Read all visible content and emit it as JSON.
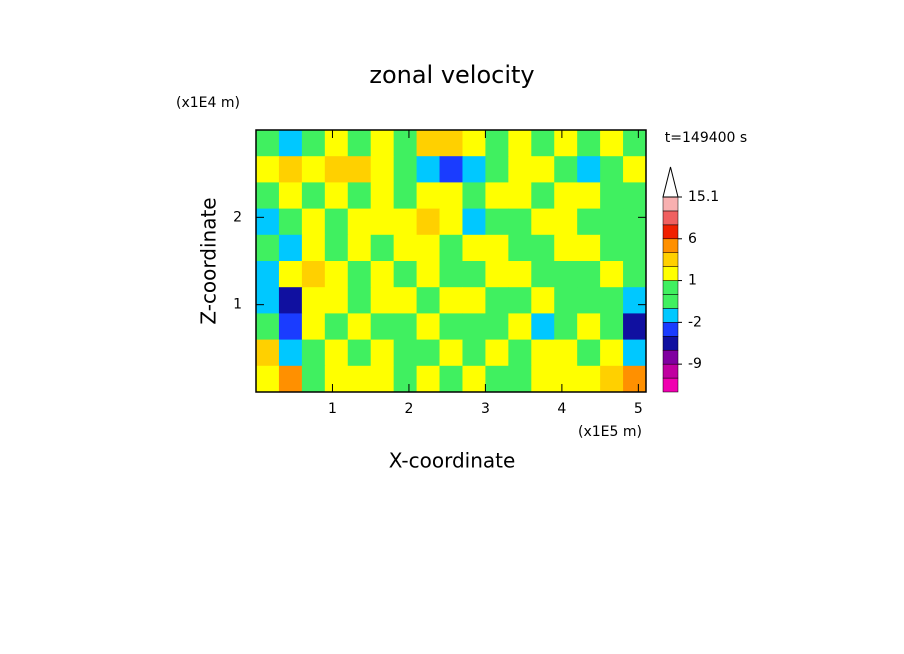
{
  "chart_data": {
    "type": "contour",
    "title": "zonal velocity",
    "xlabel": "X-coordinate",
    "ylabel": "Z-coordinate",
    "x_multiplier": "(x1E5 m)",
    "y_multiplier": "(x1E4 m)",
    "time_label": "t=149400 s",
    "xlim": [
      0,
      5.1
    ],
    "ylim": [
      0,
      3
    ],
    "xticks": [
      1,
      2,
      3,
      4,
      5
    ],
    "yticks": [
      1,
      2
    ],
    "x": [
      0.15,
      0.45,
      0.75,
      1.05,
      1.35,
      1.65,
      1.95,
      2.25,
      2.55,
      2.85,
      3.15,
      3.45,
      3.75,
      4.05,
      4.35,
      4.65,
      4.95
    ],
    "y": [
      2.85,
      2.55,
      2.25,
      1.95,
      1.65,
      1.35,
      1.05,
      0.75,
      0.45,
      0.15
    ],
    "z": [
      [
        0.5,
        -1.5,
        0.5,
        1.5,
        0.5,
        1.5,
        0.5,
        3,
        3,
        1.5,
        0.5,
        1.5,
        0.5,
        1.5,
        0.5,
        1.5,
        0.5
      ],
      [
        1.5,
        3,
        1.5,
        3,
        3,
        1.5,
        0.5,
        -1.5,
        -3,
        -1.5,
        0.5,
        1.5,
        1.5,
        0.5,
        -1.5,
        0.5,
        1.5
      ],
      [
        0.5,
        1.5,
        0.5,
        1.5,
        0.5,
        1.5,
        0.5,
        1.5,
        1.5,
        0.5,
        1.5,
        1.5,
        0.5,
        1.5,
        1.5,
        0.5,
        0.5
      ],
      [
        -1.5,
        0.5,
        1.5,
        0.5,
        1.5,
        1.5,
        1.5,
        3,
        1.5,
        -1.5,
        0.5,
        0.5,
        1.5,
        1.5,
        0.5,
        0.5,
        0.5
      ],
      [
        0.5,
        -1.5,
        1.5,
        0.5,
        1.5,
        0.5,
        1.5,
        1.5,
        0.5,
        1.5,
        1.5,
        0.5,
        0.5,
        1.5,
        1.5,
        0.5,
        0.5
      ],
      [
        -1.5,
        1.5,
        3,
        1.5,
        0.5,
        1.5,
        0.5,
        1.5,
        0.5,
        0.5,
        1.5,
        1.5,
        0.5,
        0.5,
        0.5,
        1.5,
        0.5
      ],
      [
        -1.5,
        -5,
        1.5,
        1.5,
        0.5,
        1.5,
        1.5,
        0.5,
        1.5,
        1.5,
        0.5,
        0.5,
        1.5,
        0.5,
        0.5,
        0.5,
        -1.5
      ],
      [
        0.5,
        -3,
        1.5,
        0.5,
        1.5,
        0.5,
        0.5,
        1.5,
        0.5,
        0.5,
        0.5,
        1.5,
        -1.5,
        0.5,
        1.5,
        0.5,
        -5
      ],
      [
        3,
        -1.5,
        0.5,
        1.5,
        0.5,
        1.5,
        0.5,
        0.5,
        1.5,
        0.5,
        1.5,
        0.5,
        1.5,
        1.5,
        0.5,
        1.5,
        -1.5
      ],
      [
        1.5,
        5,
        0.5,
        1.5,
        1.5,
        1.5,
        0.5,
        1.5,
        0.5,
        1.5,
        0.5,
        0.5,
        1.5,
        1.5,
        1.5,
        3,
        5
      ]
    ],
    "levels": [
      -15,
      -12,
      -9,
      -6,
      -4,
      -2,
      -1,
      0,
      1,
      2,
      4,
      6,
      9,
      12,
      15.1
    ],
    "colors": [
      "#f000b0",
      "#c000a0",
      "#8000a0",
      "#1010a0",
      "#1a3cff",
      "#00c8ff",
      "#40f060",
      "#40f060",
      "#ffff00",
      "#ffd000",
      "#ff9000",
      "#f02000",
      "#f06060",
      "#f8b0b0"
    ],
    "colorbar_ticks": [
      15.1,
      6,
      1,
      -2,
      -9
    ]
  }
}
